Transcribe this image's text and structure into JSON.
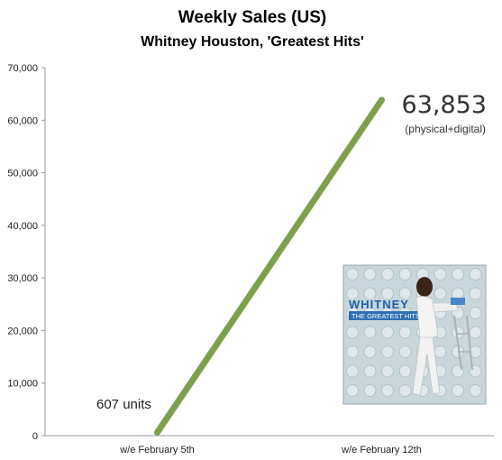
{
  "chart_data": {
    "type": "line",
    "title": "Weekly Sales (US)",
    "subtitle": "Whitney Houston,  'Greatest Hits'",
    "categories": [
      "w/e February 5th",
      "w/e February 12th"
    ],
    "series": [
      {
        "values": [
          607,
          63853
        ],
        "color": "#7ea04d"
      }
    ],
    "ylim": [
      0,
      70000
    ],
    "yticks": [
      0,
      10000,
      20000,
      30000,
      40000,
      50000,
      60000,
      70000
    ],
    "ytick_labels": [
      "0",
      "10,000",
      "20,000",
      "30,000",
      "40,000",
      "50,000",
      "60,000",
      "70,000"
    ],
    "grid": false,
    "annotations": {
      "start_label": "607 units",
      "end_value": "63,853",
      "end_note": "(physical+digital)"
    }
  },
  "album_cover": {
    "artist_text": "WHITNEY",
    "album_text": "THE GREATEST HITS"
  }
}
